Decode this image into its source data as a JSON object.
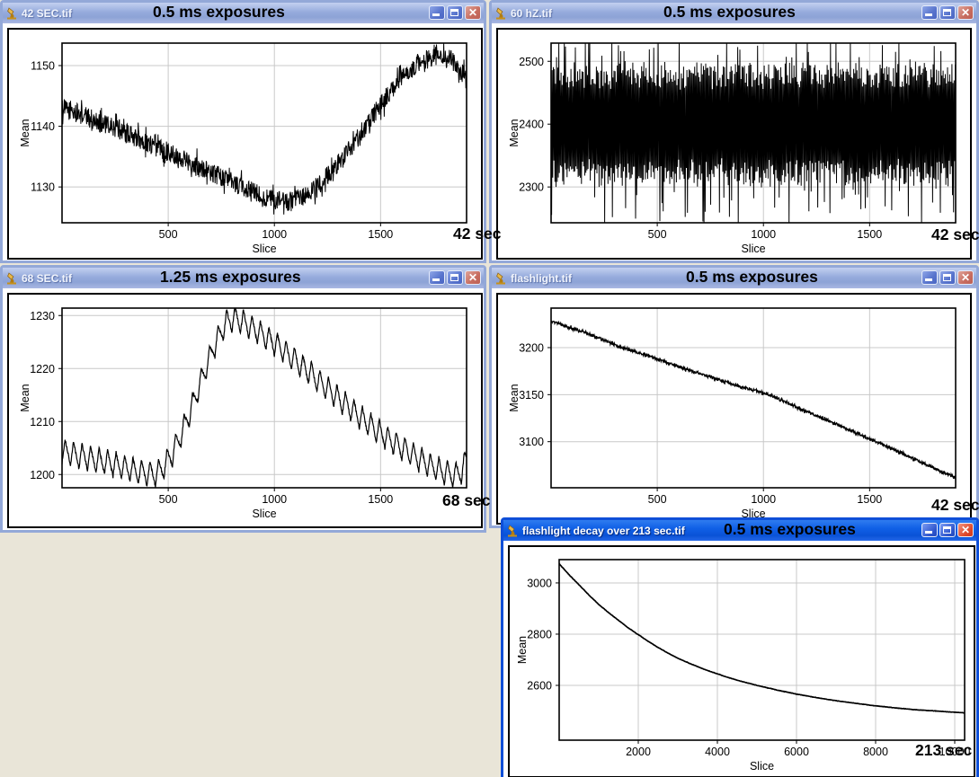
{
  "desktop": {
    "background_color": "#e9e5d8"
  },
  "theme": {
    "titlebar_active_color": "#0a52d6",
    "titlebar_inactive_color": "#96abdc",
    "close_button_color": "#c76c5f",
    "close_button_active_color": "#dd4527",
    "plot_line_color": "#000000",
    "grid_color": "#c8c8c8",
    "plot_background": "#ffffff",
    "annotation_text_color": "#000000"
  },
  "windows": [
    {
      "title": "42 SEC.tif",
      "exposure": "0.5 ms exposures",
      "time_label": "42 sec"
    },
    {
      "title": "60 hZ.tif",
      "exposure": "0.5 ms exposures",
      "time_label": "42 sec"
    },
    {
      "title": "68 SEC.tif",
      "exposure": "1.25 ms exposures",
      "time_label": "68 sec"
    },
    {
      "title": "flashlight.tif",
      "exposure": "0.5 ms exposures",
      "time_label": "42 sec"
    },
    {
      "title": "flashlight decay over 213 sec.tif",
      "exposure": "0.5 ms exposures",
      "time_label": "213 sec"
    }
  ],
  "chart_data": [
    {
      "window": "42 SEC.tif",
      "type": "line",
      "series_style": "noisy",
      "xlabel": "Slice",
      "ylabel": "Mean",
      "xlim": [
        0,
        1905
      ],
      "ylim": [
        1124.1,
        1153.7
      ],
      "xticks": [
        500,
        1000,
        1500
      ],
      "yticks": [
        1130,
        1140,
        1150
      ],
      "grid": true,
      "noise_amplitude": 1.6,
      "anchors": [
        [
          0,
          1143
        ],
        [
          100,
          1141.8
        ],
        [
          200,
          1140.3
        ],
        [
          300,
          1139
        ],
        [
          400,
          1137.2
        ],
        [
          500,
          1135.8
        ],
        [
          600,
          1134.2
        ],
        [
          700,
          1132.5
        ],
        [
          800,
          1130.8
        ],
        [
          900,
          1129.2
        ],
        [
          1000,
          1127.8
        ],
        [
          1060,
          1127.4
        ],
        [
          1120,
          1128
        ],
        [
          1200,
          1130
        ],
        [
          1280,
          1133
        ],
        [
          1360,
          1136.5
        ],
        [
          1440,
          1140.5
        ],
        [
          1520,
          1144.5
        ],
        [
          1600,
          1148
        ],
        [
          1680,
          1150.5
        ],
        [
          1760,
          1151.5
        ],
        [
          1830,
          1151
        ],
        [
          1870,
          1149.5
        ],
        [
          1905,
          1147.5
        ]
      ]
    },
    {
      "window": "60 hZ.tif",
      "type": "line",
      "series_style": "dense-oscillation",
      "xlabel": "Slice",
      "ylabel": "Mean",
      "xlim": [
        0,
        1905
      ],
      "ylim": [
        2243,
        2529
      ],
      "xticks": [
        500,
        1000,
        1500
      ],
      "yticks": [
        2300,
        2400,
        2500
      ],
      "grid": true,
      "oscillation": {
        "mean": 2400,
        "core_amplitude": 58,
        "amplitude_jitter": 38,
        "spike_probability": 0.2,
        "spike_extra_high": 60,
        "spike_extra_low": 85,
        "step_slices": 2.6
      }
    },
    {
      "window": "68 SEC.tif",
      "type": "line",
      "series_style": "sawtooth",
      "xlabel": "Slice",
      "ylabel": "Mean",
      "xlim": [
        0,
        1905
      ],
      "ylim": [
        1197.5,
        1231.4
      ],
      "xticks": [
        500,
        1000,
        1500
      ],
      "yticks": [
        1200,
        1210,
        1220,
        1230
      ],
      "grid": true,
      "sawtooth": {
        "period": 40,
        "amplitude": 2.4
      },
      "anchors": [
        [
          0,
          1204.5
        ],
        [
          80,
          1203.5
        ],
        [
          160,
          1202.8
        ],
        [
          240,
          1202
        ],
        [
          320,
          1201
        ],
        [
          400,
          1200.2
        ],
        [
          440,
          1200
        ],
        [
          480,
          1201.5
        ],
        [
          520,
          1204
        ],
        [
          560,
          1207.5
        ],
        [
          600,
          1211.5
        ],
        [
          640,
          1216
        ],
        [
          680,
          1220.5
        ],
        [
          720,
          1224.5
        ],
        [
          750,
          1227
        ],
        [
          780,
          1229
        ],
        [
          820,
          1229.5
        ],
        [
          860,
          1228.5
        ],
        [
          920,
          1227
        ],
        [
          1000,
          1224.8
        ],
        [
          1100,
          1221.5
        ],
        [
          1200,
          1218
        ],
        [
          1300,
          1214.5
        ],
        [
          1400,
          1211
        ],
        [
          1500,
          1207.8
        ],
        [
          1600,
          1205
        ],
        [
          1700,
          1202.5
        ],
        [
          1780,
          1200.8
        ],
        [
          1840,
          1199.8
        ],
        [
          1880,
          1200.5
        ],
        [
          1905,
          1203
        ]
      ]
    },
    {
      "window": "flashlight.tif",
      "type": "line",
      "series_style": "noisy",
      "xlabel": "Slice",
      "ylabel": "Mean",
      "xlim": [
        0,
        1905
      ],
      "ylim": [
        3051,
        3242
      ],
      "xticks": [
        500,
        1000,
        1500
      ],
      "yticks": [
        3100,
        3150,
        3200
      ],
      "grid": true,
      "noise_amplitude": 1.5,
      "anchors": [
        [
          0,
          3228
        ],
        [
          150,
          3217
        ],
        [
          300,
          3203
        ],
        [
          500,
          3188
        ],
        [
          700,
          3172
        ],
        [
          900,
          3158
        ],
        [
          1030,
          3150
        ],
        [
          1200,
          3132
        ],
        [
          1350,
          3118
        ],
        [
          1500,
          3103
        ],
        [
          1650,
          3088
        ],
        [
          1800,
          3072
        ],
        [
          1905,
          3062
        ]
      ]
    },
    {
      "window": "flashlight decay over 213 sec.tif",
      "type": "line",
      "series_style": "smooth",
      "xlabel": "Slice",
      "ylabel": "Mean",
      "xlim": [
        0,
        10250
      ],
      "ylim": [
        2386,
        3091
      ],
      "xticks": [
        2000,
        4000,
        6000,
        8000,
        10000
      ],
      "yticks": [
        2600,
        2800,
        3000
      ],
      "grid": true,
      "noise_amplitude": 0.6,
      "anchors": [
        [
          0,
          3075
        ],
        [
          250,
          3032
        ],
        [
          500,
          2993
        ],
        [
          750,
          2953
        ],
        [
          1000,
          2916
        ],
        [
          1250,
          2884
        ],
        [
          1500,
          2854
        ],
        [
          1750,
          2824
        ],
        [
          2000,
          2798
        ],
        [
          2250,
          2772
        ],
        [
          2500,
          2748
        ],
        [
          2750,
          2726
        ],
        [
          3000,
          2706
        ],
        [
          3250,
          2689
        ],
        [
          3500,
          2673
        ],
        [
          3750,
          2658
        ],
        [
          4000,
          2645
        ],
        [
          4250,
          2632
        ],
        [
          4500,
          2620
        ],
        [
          4750,
          2610
        ],
        [
          5000,
          2600
        ],
        [
          5500,
          2582
        ],
        [
          6000,
          2566
        ],
        [
          6500,
          2552
        ],
        [
          7000,
          2540
        ],
        [
          7500,
          2530
        ],
        [
          8000,
          2520
        ],
        [
          8500,
          2512
        ],
        [
          9000,
          2505
        ],
        [
          9500,
          2500
        ],
        [
          10000,
          2495
        ],
        [
          10250,
          2493
        ]
      ]
    }
  ]
}
